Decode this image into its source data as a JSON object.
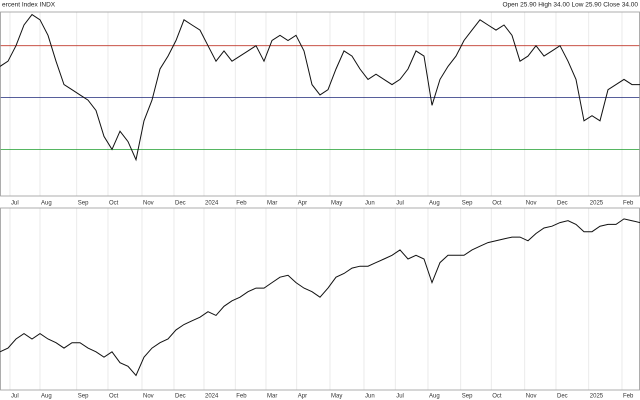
{
  "chart_data": [
    {
      "type": "line",
      "title": "ercent Index INDX",
      "subtitle": "Open 25.90  High 34.00  Low 25.90  Close 34.00",
      "color": "#111111",
      "values": [
        62,
        64,
        70,
        78,
        82,
        80,
        74,
        64,
        55,
        53,
        51,
        49,
        45,
        35,
        30,
        37,
        33,
        26,
        41,
        49,
        61,
        66,
        72,
        80,
        78,
        76,
        70,
        64,
        68,
        64,
        66,
        68,
        70,
        64,
        72,
        74,
        72,
        74,
        68,
        55,
        51,
        53,
        61,
        68,
        66,
        61,
        57,
        59,
        57,
        55,
        57,
        61,
        68,
        66,
        47,
        57,
        62,
        66,
        72,
        76,
        80,
        78,
        76,
        78,
        74,
        64,
        66,
        70,
        66,
        68,
        70,
        64,
        57,
        41,
        43,
        41,
        53,
        55,
        57,
        55,
        55
      ],
      "xlim": [
        0,
        80
      ],
      "ylim": [
        12,
        83
      ],
      "hlines": [
        70,
        50,
        30
      ],
      "hline_colors": [
        "#c0392b",
        "#1f2a7a",
        "#1e9e2e"
      ],
      "xticks": [
        {
          "value": 1.25,
          "label": "Jul"
        },
        {
          "value": 5,
          "label": "Aug"
        },
        {
          "value": 9.6,
          "label": "Sep"
        },
        {
          "value": 13.5,
          "label": "Oct"
        },
        {
          "value": 17.75,
          "label": "Nov"
        },
        {
          "value": 21.75,
          "label": "Dec"
        },
        {
          "value": 25.5,
          "label": "2024"
        },
        {
          "value": 29.4,
          "label": "Feb"
        },
        {
          "value": 33.25,
          "label": "Mar"
        },
        {
          "value": 37.1,
          "label": "Apr"
        },
        {
          "value": 41.25,
          "label": "May"
        },
        {
          "value": 45.5,
          "label": "Jun"
        },
        {
          "value": 49.4,
          "label": "Jul"
        },
        {
          "value": 53.5,
          "label": "Aug"
        },
        {
          "value": 57.6,
          "label": "Sep"
        },
        {
          "value": 61.4,
          "label": "Oct"
        },
        {
          "value": 65.6,
          "label": "Nov"
        },
        {
          "value": 69.5,
          "label": "Dec"
        },
        {
          "value": 73.6,
          "label": "2025"
        },
        {
          "value": 77.75,
          "label": "Feb"
        }
      ],
      "grid": true
    },
    {
      "type": "line",
      "color": "#111111",
      "values": [
        21,
        23,
        28,
        31,
        28,
        31,
        28,
        26,
        23,
        26,
        26,
        23,
        21,
        18,
        21,
        15,
        13,
        8,
        18,
        23,
        26,
        28,
        33,
        36,
        38,
        40,
        43,
        41,
        46,
        49,
        51,
        54,
        56,
        56,
        59,
        62,
        63,
        59,
        56,
        54,
        51,
        56,
        62,
        64,
        67,
        68,
        68,
        70,
        72,
        74,
        77,
        72,
        74,
        72,
        59,
        70,
        74,
        74,
        74,
        77,
        79,
        81,
        82,
        83,
        84,
        84,
        82,
        86,
        89,
        90,
        92,
        93,
        91,
        87,
        87,
        90,
        91,
        91,
        94,
        93,
        92
      ],
      "xlim": [
        0,
        80
      ],
      "ylim": [
        0,
        100
      ],
      "xticks": [
        {
          "value": 1.25,
          "label": "Jul"
        },
        {
          "value": 5,
          "label": "Aug"
        },
        {
          "value": 9.6,
          "label": "Sep"
        },
        {
          "value": 13.5,
          "label": "Oct"
        },
        {
          "value": 17.75,
          "label": "Nov"
        },
        {
          "value": 21.75,
          "label": "Dec"
        },
        {
          "value": 25.5,
          "label": "2024"
        },
        {
          "value": 29.4,
          "label": "Feb"
        },
        {
          "value": 33.25,
          "label": "Mar"
        },
        {
          "value": 37.1,
          "label": "Apr"
        },
        {
          "value": 41.25,
          "label": "May"
        },
        {
          "value": 45.5,
          "label": "Jun"
        },
        {
          "value": 49.4,
          "label": "Jul"
        },
        {
          "value": 53.5,
          "label": "Aug"
        },
        {
          "value": 57.6,
          "label": "Sep"
        },
        {
          "value": 61.4,
          "label": "Oct"
        },
        {
          "value": 65.6,
          "label": "Nov"
        },
        {
          "value": 69.5,
          "label": "Dec"
        },
        {
          "value": 73.6,
          "label": "2025"
        },
        {
          "value": 77.75,
          "label": "Feb"
        }
      ],
      "grid": true
    }
  ]
}
